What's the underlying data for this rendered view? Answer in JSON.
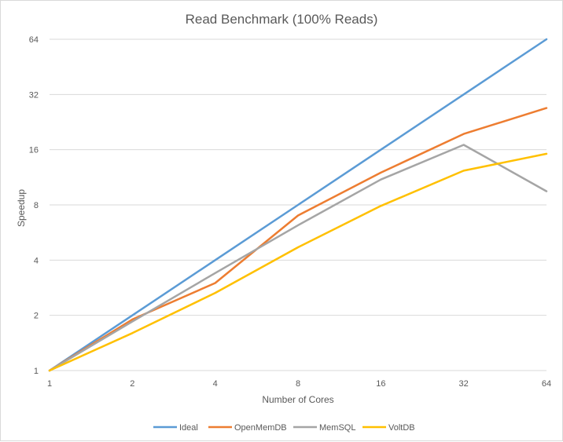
{
  "chart_data": {
    "type": "line",
    "title": "Read Benchmark (100% Reads)",
    "xlabel": "Number  of Cores",
    "ylabel": "Speedup",
    "x_scale": "log2",
    "y_scale": "log2",
    "categories": [
      "1",
      "2",
      "4",
      "8",
      "16",
      "32",
      "64"
    ],
    "x": [
      1,
      2,
      4,
      8,
      16,
      32,
      64
    ],
    "yticks": [
      1,
      2,
      4,
      8,
      16,
      32,
      64
    ],
    "ylim": [
      1,
      64
    ],
    "grid": "horizontal",
    "legend_position": "bottom",
    "series": [
      {
        "name": "Ideal",
        "color": "#5b9bd5",
        "values": [
          1,
          2,
          4,
          8,
          16,
          32,
          64
        ]
      },
      {
        "name": "OpenMemDB",
        "color": "#ed7d31",
        "values": [
          1,
          1.9,
          3.0,
          7.0,
          12.0,
          19.5,
          27.0
        ]
      },
      {
        "name": "MemSQL",
        "color": "#a5a5a5",
        "values": [
          1,
          1.85,
          3.4,
          6.2,
          11.0,
          17.0,
          9.5
        ]
      },
      {
        "name": "VoltDB",
        "color": "#ffc000",
        "values": [
          1,
          1.6,
          2.65,
          4.7,
          7.9,
          12.3,
          15.2
        ]
      }
    ]
  }
}
